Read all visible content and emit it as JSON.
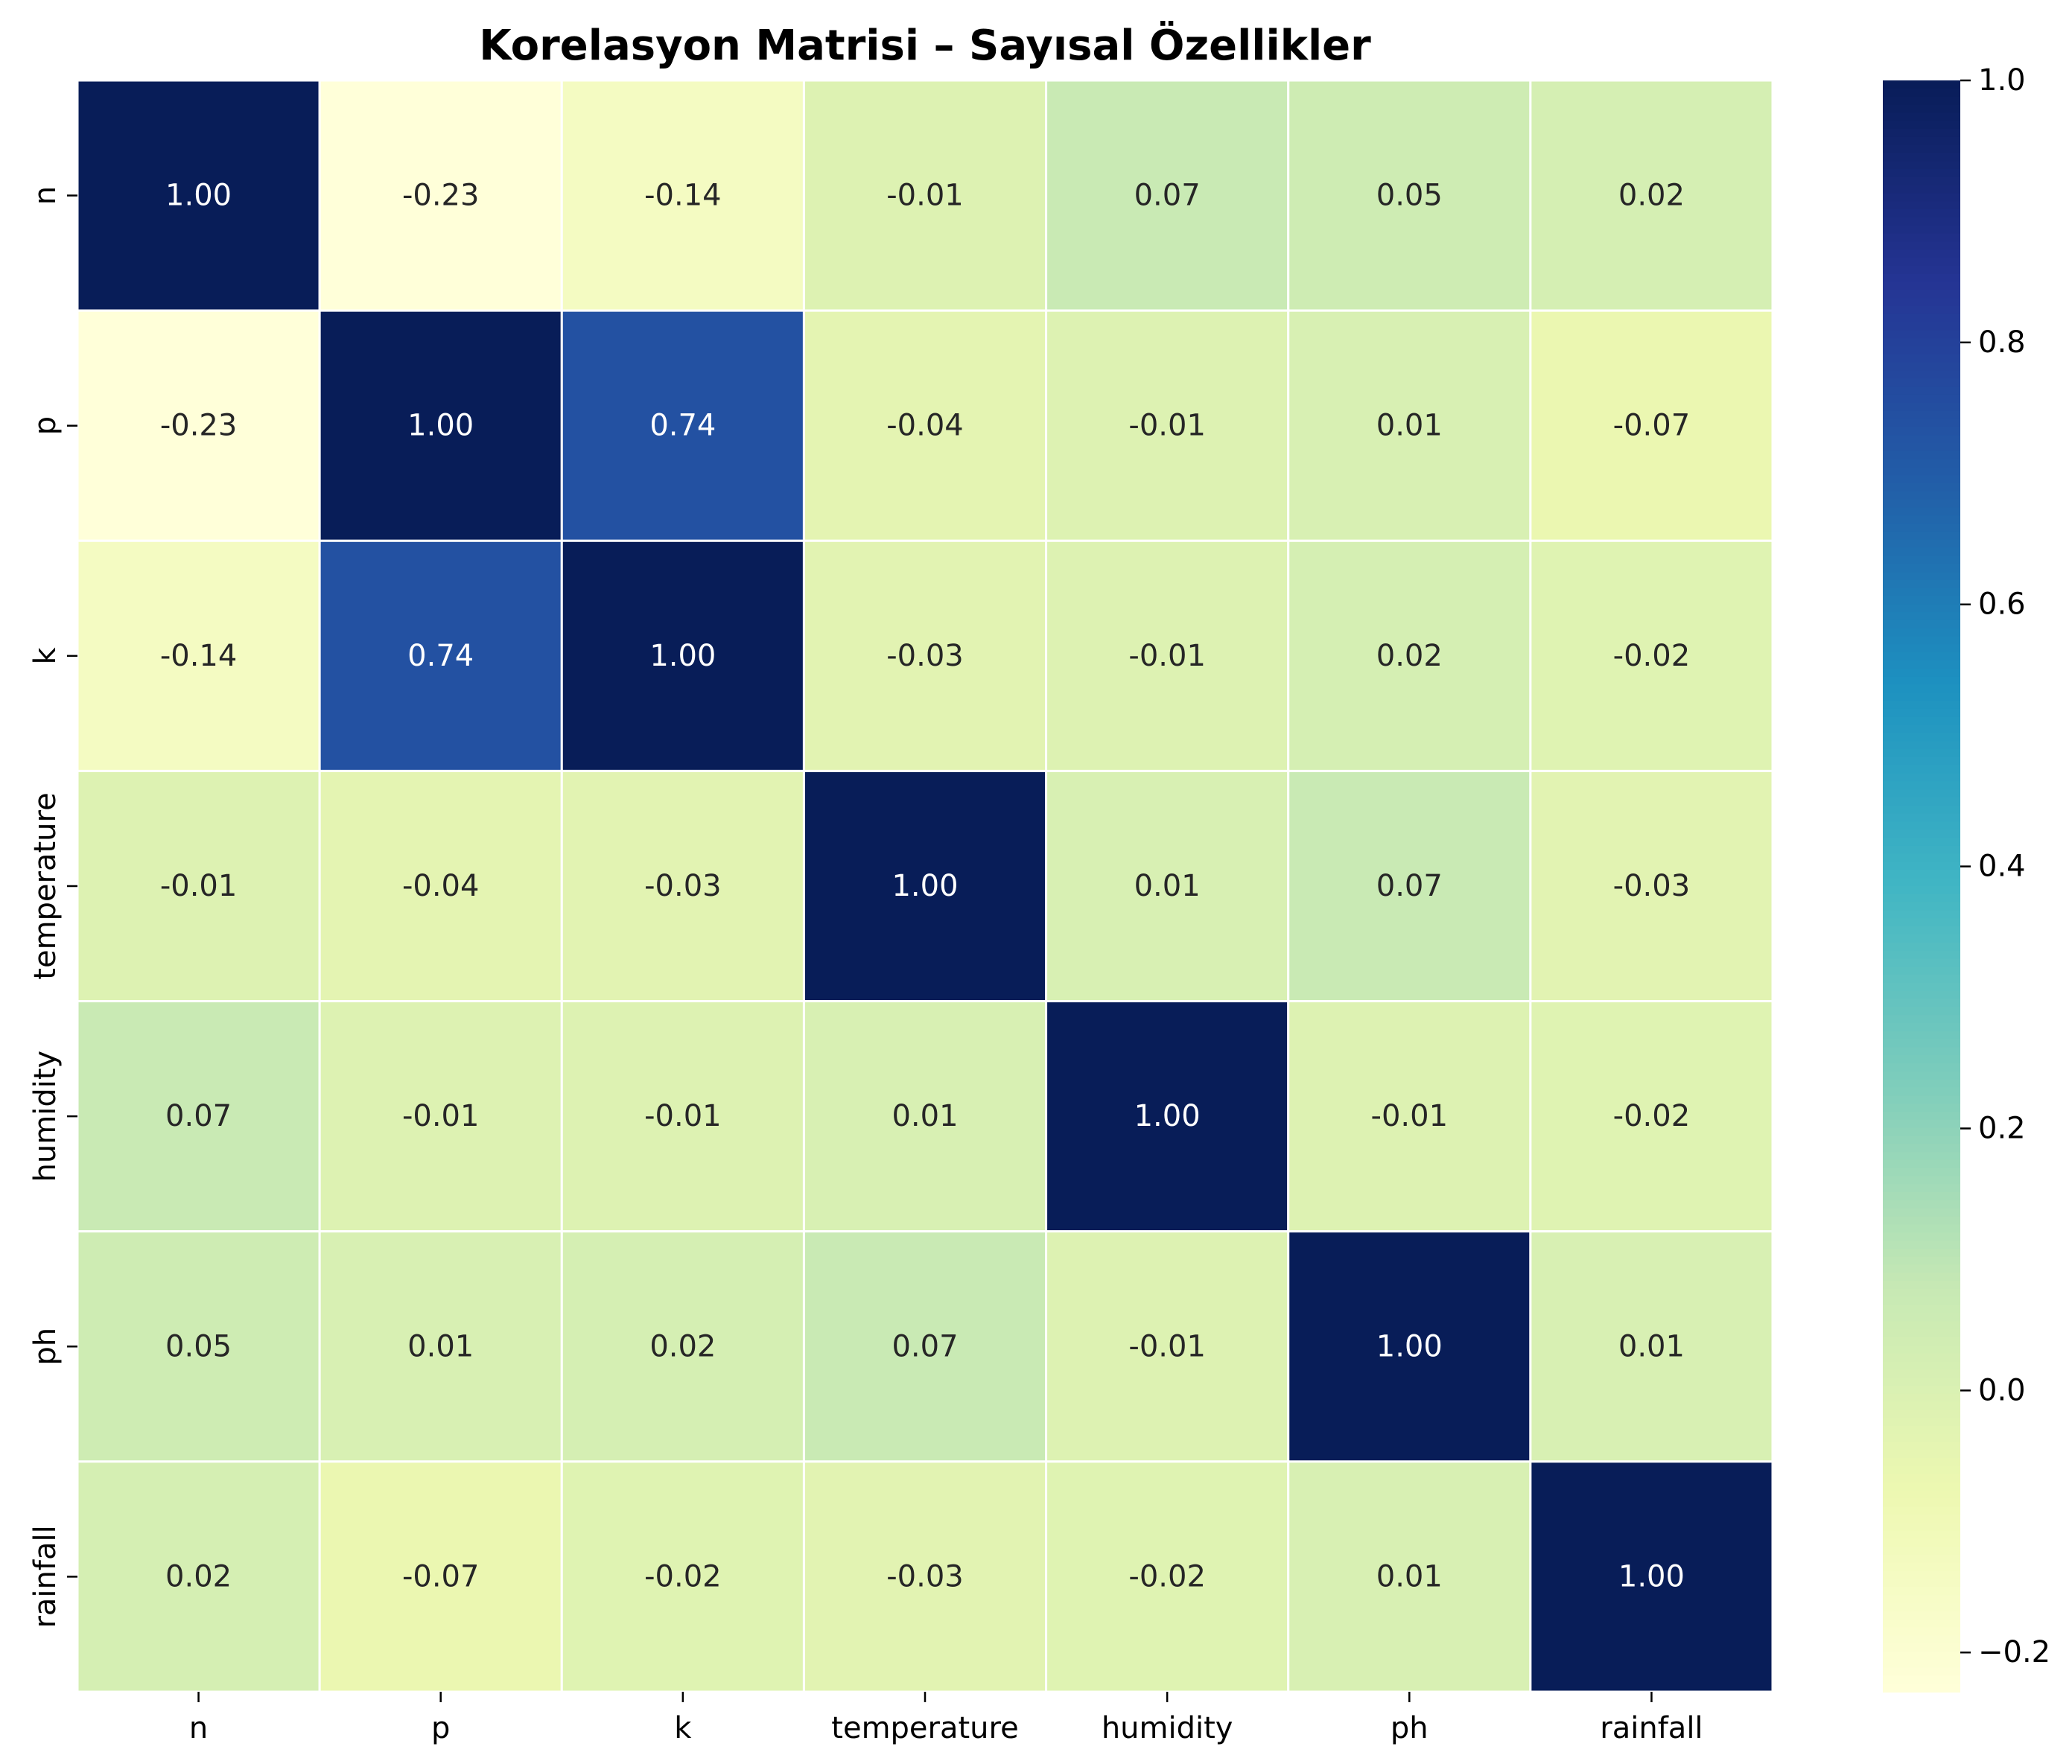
{
  "chart_data": {
    "type": "heatmap",
    "title": "Korelasyon Matrisi – Sayısal Özellikler",
    "xlabel": "",
    "ylabel": "",
    "x_categories": [
      "n",
      "p",
      "k",
      "temperature",
      "humidity",
      "ph",
      "rainfall"
    ],
    "y_categories": [
      "n",
      "p",
      "k",
      "temperature",
      "humidity",
      "ph",
      "rainfall"
    ],
    "values": [
      [
        1.0,
        -0.23,
        -0.14,
        -0.01,
        0.07,
        0.05,
        0.02
      ],
      [
        -0.23,
        1.0,
        0.74,
        -0.04,
        -0.01,
        0.01,
        -0.07
      ],
      [
        -0.14,
        0.74,
        1.0,
        -0.03,
        -0.01,
        0.02,
        -0.02
      ],
      [
        -0.01,
        -0.04,
        -0.03,
        1.0,
        0.01,
        0.07,
        -0.03
      ],
      [
        0.07,
        -0.01,
        -0.01,
        0.01,
        1.0,
        -0.01,
        -0.02
      ],
      [
        0.05,
        0.01,
        0.02,
        0.07,
        -0.01,
        1.0,
        0.01
      ],
      [
        0.02,
        -0.07,
        -0.02,
        -0.03,
        -0.02,
        0.01,
        1.0
      ]
    ],
    "value_format": "2 decimals",
    "colormap": "YlGnBu",
    "colorbar": {
      "min": -0.23,
      "max": 1.0,
      "ticks": [
        -0.2,
        0.0,
        0.2,
        0.4,
        0.6,
        0.8,
        1.0
      ],
      "tick_labels": [
        "−0.2",
        "0.0",
        "0.2",
        "0.4",
        "0.6",
        "0.8",
        "1.0"
      ]
    },
    "grid": false,
    "legend": "colorbar-right",
    "cell_border_color": "#ffffff"
  }
}
